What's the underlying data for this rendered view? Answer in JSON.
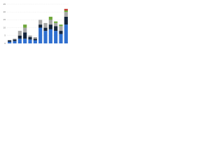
{
  "chart_data": {
    "type": "stacked-bar",
    "categories": [
      null,
      null,
      null,
      null,
      null,
      null,
      null,
      null,
      null,
      null,
      null,
      null
    ],
    "series": [
      {
        "color": "#2f6fcf",
        "values": [
          1,
          1.5,
          3,
          3,
          2.5,
          2,
          10,
          8,
          9,
          8,
          6,
          12
        ]
      },
      {
        "color": "#14243b",
        "values": [
          1,
          1,
          2,
          4,
          1.5,
          1,
          2,
          2,
          3,
          3,
          2,
          5
        ]
      },
      {
        "color": "#a6a6a6",
        "values": [
          0,
          0.5,
          3,
          3,
          1,
          1,
          3,
          3,
          3,
          2,
          3,
          3
        ]
      },
      {
        "color": "#6fa83b",
        "values": [
          0,
          0,
          0,
          2,
          0,
          0,
          0,
          0,
          2,
          1,
          1,
          1
        ]
      },
      {
        "color": "#c0392b",
        "values": [
          0,
          0,
          0,
          0,
          0,
          0,
          0,
          0,
          0,
          0,
          0,
          1
        ]
      }
    ],
    "ylim": [
      0,
      25
    ],
    "yticks": [
      0,
      5,
      10,
      15,
      20,
      25
    ],
    "grid": true
  }
}
